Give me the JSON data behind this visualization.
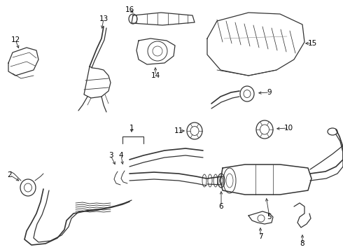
{
  "bg_color": "#ffffff",
  "line_color": "#333333",
  "label_color": "#000000",
  "fig_w": 4.9,
  "fig_h": 3.6,
  "dpi": 100,
  "label_fontsize": 7.5,
  "arrow_lw": 0.6,
  "draw_lw": 0.9
}
